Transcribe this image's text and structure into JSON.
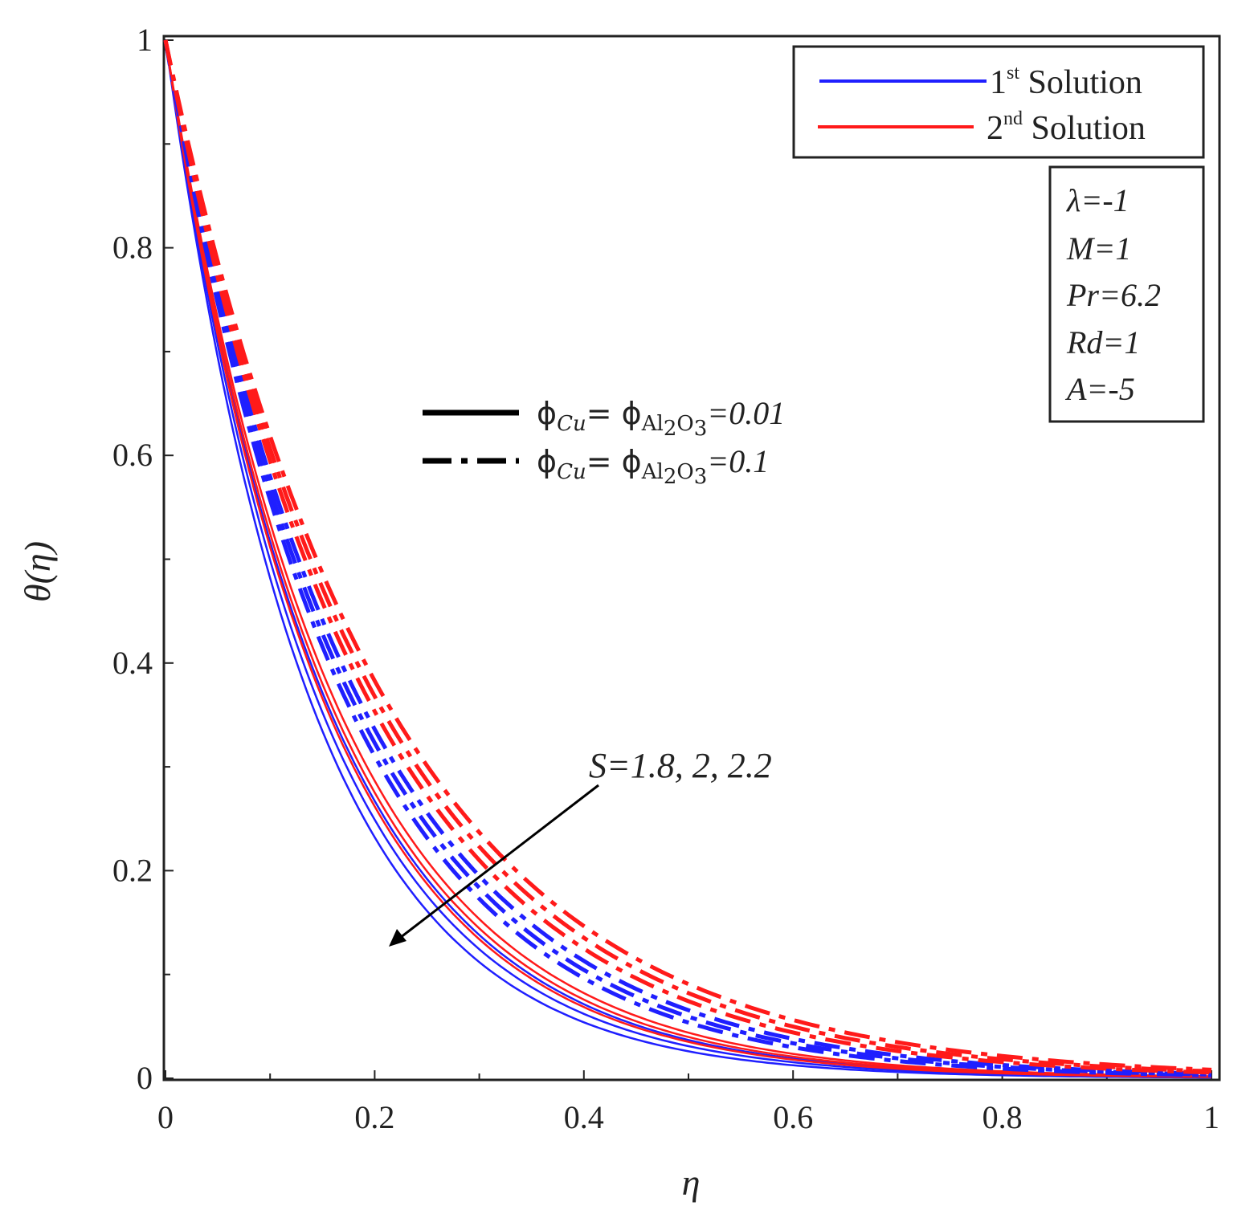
{
  "chart_data": {
    "type": "line",
    "title": "",
    "xlabel": "η",
    "ylabel": "θ(η)",
    "xlim": [
      0,
      1
    ],
    "ylim": [
      0,
      1
    ],
    "x_ticks": [
      "0",
      "0.2",
      "0.4",
      "0.6",
      "0.8",
      "1"
    ],
    "y_ticks": [
      "0",
      "0.2",
      "0.4",
      "0.6",
      "0.8",
      "1"
    ],
    "x_tick_values": [
      0,
      0.2,
      0.4,
      0.6,
      0.8,
      1
    ],
    "y_tick_values": [
      0,
      0.2,
      0.4,
      0.6,
      0.8,
      1
    ],
    "colors": {
      "first": "#1f1fff",
      "second": "#ff1a1a",
      "axis": "#222222"
    },
    "legend": {
      "first": {
        "base": "1",
        "sup": "st",
        "text": " Solution"
      },
      "second": {
        "base": "2",
        "sup": "nd",
        "text": " Solution"
      }
    },
    "style_legend": {
      "solid": {
        "phi_cu": "ϕ",
        "cu_sub": "Cu",
        "eq": "= ϕ",
        "al_sub": "Al",
        "al_n": "2",
        "o_sub": "O",
        "o_n": "3",
        "value": "=0.01"
      },
      "dashdot": {
        "phi_cu": "ϕ",
        "cu_sub": "Cu",
        "eq": "= ϕ",
        "al_sub": "Al",
        "al_n": "2",
        "o_sub": "O",
        "o_n": "3",
        "value": "=0.1"
      }
    },
    "parameters": [
      "λ=-1",
      "M=1",
      "Pr=6.2",
      "Rd=1",
      "A=-5"
    ],
    "annotation": "S=1.8, 2, 2.2",
    "series": [
      {
        "name": "1st Solution, φ=0.01, S=1.8",
        "solution": "first",
        "style": "solid",
        "decay": 6.6
      },
      {
        "name": "1st Solution, φ=0.01, S=2",
        "solution": "first",
        "style": "solid",
        "decay": 6.95
      },
      {
        "name": "1st Solution, φ=0.01, S=2.2",
        "solution": "first",
        "style": "solid",
        "decay": 7.3
      },
      {
        "name": "2nd Solution, φ=0.01, S=1.8",
        "solution": "second",
        "style": "solid",
        "decay": 6.25
      },
      {
        "name": "2nd Solution, φ=0.01, S=2",
        "solution": "second",
        "style": "solid",
        "decay": 6.45
      },
      {
        "name": "2nd Solution, φ=0.01, S=2.2",
        "solution": "second",
        "style": "solid",
        "decay": 6.7
      },
      {
        "name": "1st Solution, φ=0.1, S=1.8",
        "solution": "first",
        "style": "dashdot",
        "decay": 5.45
      },
      {
        "name": "1st Solution, φ=0.1, S=2",
        "solution": "first",
        "style": "dashdot",
        "decay": 5.65
      },
      {
        "name": "1st Solution, φ=0.1, S=2.2",
        "solution": "first",
        "style": "dashdot",
        "decay": 5.85
      },
      {
        "name": "2nd Solution, φ=0.1, S=1.8",
        "solution": "second",
        "style": "dashdot",
        "decay": 4.8
      },
      {
        "name": "2nd Solution, φ=0.1, S=2",
        "solution": "second",
        "style": "dashdot",
        "decay": 5.0
      },
      {
        "name": "2nd Solution, φ=0.1, S=2.2",
        "solution": "second",
        "style": "dashdot",
        "decay": 5.2
      }
    ]
  }
}
